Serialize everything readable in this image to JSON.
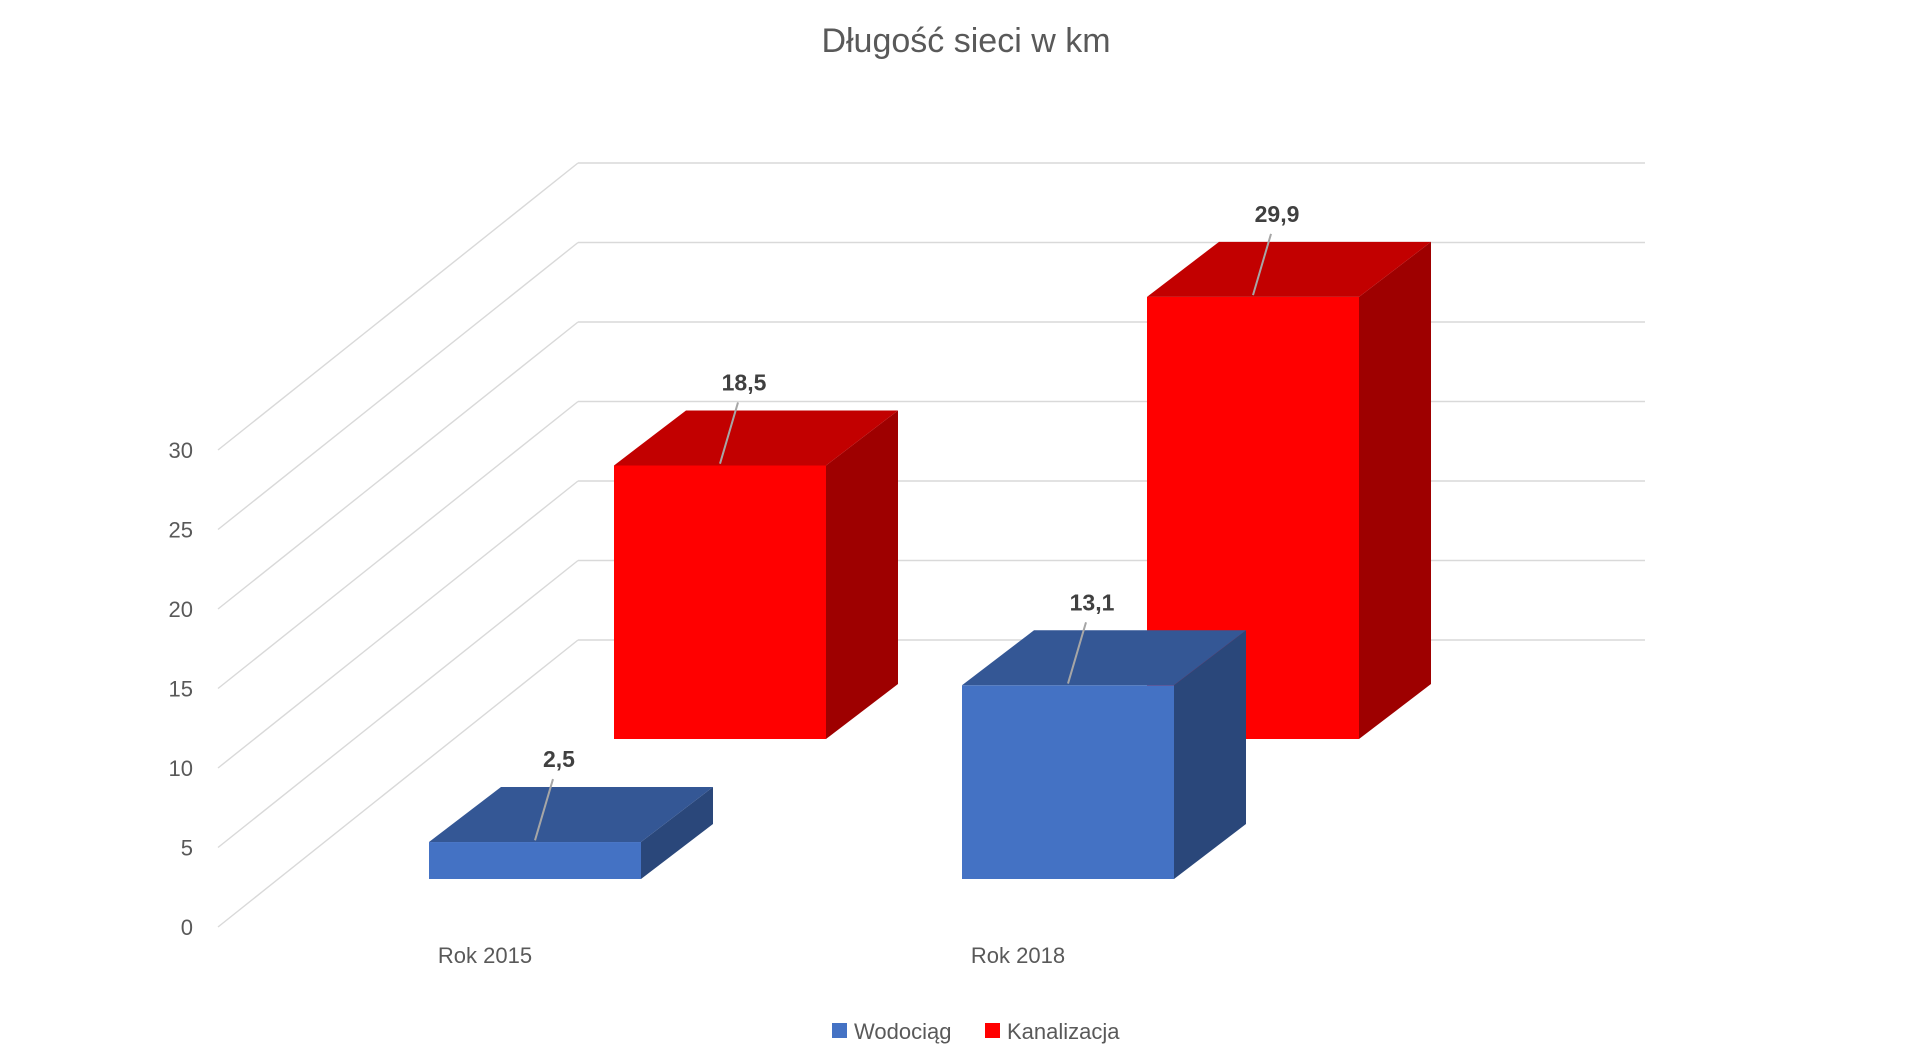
{
  "chart_data": {
    "type": "bar",
    "title": "Długość sieci w km",
    "categories": [
      "Rok 2015",
      "Rok 2018"
    ],
    "series": [
      {
        "name": "Wodociąg",
        "values": [
          2.5,
          13.1
        ],
        "value_labels": [
          "2,5",
          "13,1"
        ],
        "color": "#4472C4"
      },
      {
        "name": "Kanalizacja",
        "values": [
          18.5,
          29.9
        ],
        "value_labels": [
          "18,5",
          "29,9"
        ],
        "color": "#FF0000"
      }
    ],
    "ylim": [
      0,
      30
    ],
    "yticks": [
      "0",
      "5",
      "10",
      "15",
      "20",
      "25",
      "30"
    ],
    "grid": true,
    "legend_position": "bottom",
    "style": "3d-column"
  }
}
